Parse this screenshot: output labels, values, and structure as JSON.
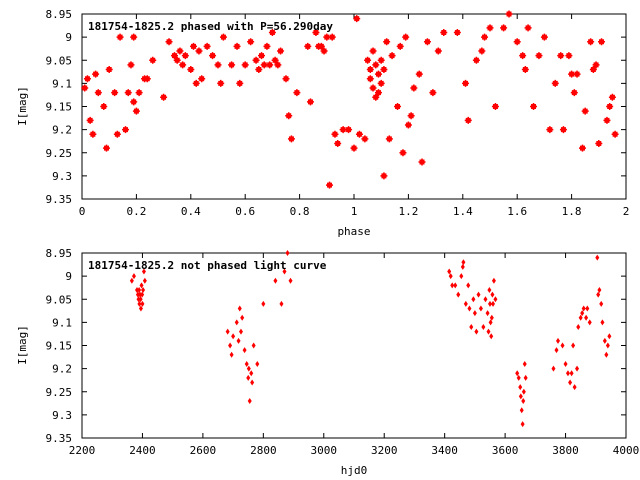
{
  "chart_data": [
    {
      "type": "scatter",
      "title": "181754-1825.2 phased with P=56.290day",
      "xlabel": "phase",
      "ylabel": "I[mag]",
      "xlim": [
        0,
        2
      ],
      "ylim": [
        9.35,
        8.95
      ],
      "y_inverted": true,
      "x_ticks": [
        "0",
        "0.2",
        "0.4",
        "0.6",
        "0.8",
        "1",
        "1.2",
        "1.4",
        "1.6",
        "1.8",
        "2"
      ],
      "y_ticks": [
        "8.95",
        "9",
        "9.05",
        "9.1",
        "9.15",
        "9.2",
        "9.25",
        "9.3",
        "9.35"
      ],
      "marker_color": "#ff0000",
      "grid": false,
      "series": [
        {
          "points": [
            [
              0.01,
              9.11
            ],
            [
              0.02,
              9.09
            ],
            [
              0.03,
              9.18
            ],
            [
              0.04,
              9.21
            ],
            [
              0.05,
              9.08
            ],
            [
              0.06,
              9.12
            ],
            [
              0.08,
              9.15
            ],
            [
              0.09,
              9.24
            ],
            [
              0.1,
              9.07
            ],
            [
              0.12,
              9.12
            ],
            [
              0.13,
              9.21
            ],
            [
              0.14,
              9.0
            ],
            [
              0.16,
              9.2
            ],
            [
              0.17,
              9.12
            ],
            [
              0.18,
              9.06
            ],
            [
              0.19,
              9.14
            ],
            [
              0.19,
              9.0
            ],
            [
              0.2,
              9.16
            ],
            [
              0.21,
              9.12
            ],
            [
              0.23,
              9.09
            ],
            [
              0.24,
              9.09
            ],
            [
              0.26,
              9.05
            ],
            [
              0.3,
              9.13
            ],
            [
              0.32,
              9.01
            ],
            [
              0.34,
              9.04
            ],
            [
              0.35,
              9.05
            ],
            [
              0.36,
              9.03
            ],
            [
              0.37,
              9.06
            ],
            [
              0.38,
              9.04
            ],
            [
              0.4,
              9.07
            ],
            [
              0.41,
              9.02
            ],
            [
              0.42,
              9.1
            ],
            [
              0.43,
              9.03
            ],
            [
              0.44,
              9.09
            ],
            [
              0.46,
              9.02
            ],
            [
              0.48,
              9.04
            ],
            [
              0.5,
              9.06
            ],
            [
              0.51,
              9.1
            ],
            [
              0.52,
              9.0
            ],
            [
              0.55,
              9.06
            ],
            [
              0.57,
              9.02
            ],
            [
              0.58,
              9.1
            ],
            [
              0.6,
              9.06
            ],
            [
              0.62,
              9.01
            ],
            [
              0.64,
              9.05
            ],
            [
              0.65,
              9.07
            ],
            [
              0.66,
              9.04
            ],
            [
              0.67,
              9.06
            ],
            [
              0.68,
              9.02
            ],
            [
              0.69,
              9.06
            ],
            [
              0.7,
              8.99
            ],
            [
              0.71,
              9.05
            ],
            [
              0.72,
              9.06
            ],
            [
              0.73,
              9.03
            ],
            [
              0.75,
              9.09
            ],
            [
              0.76,
              9.17
            ],
            [
              0.77,
              9.22
            ],
            [
              0.79,
              9.12
            ],
            [
              0.83,
              9.02
            ],
            [
              0.84,
              9.14
            ],
            [
              0.86,
              8.99
            ],
            [
              0.87,
              9.02
            ],
            [
              0.88,
              9.02
            ],
            [
              0.89,
              9.03
            ],
            [
              0.9,
              9.0
            ],
            [
              0.91,
              9.32
            ],
            [
              0.92,
              9.0
            ],
            [
              0.93,
              9.21
            ],
            [
              0.94,
              9.23
            ],
            [
              0.96,
              9.2
            ],
            [
              0.98,
              9.2
            ],
            [
              1.0,
              9.24
            ],
            [
              1.01,
              8.96
            ],
            [
              1.02,
              9.21
            ],
            [
              1.04,
              9.22
            ],
            [
              1.05,
              9.05
            ],
            [
              1.06,
              9.07
            ],
            [
              1.06,
              9.09
            ],
            [
              1.07,
              9.11
            ],
            [
              1.07,
              9.03
            ],
            [
              1.08,
              9.06
            ],
            [
              1.08,
              9.13
            ],
            [
              1.09,
              9.08
            ],
            [
              1.09,
              9.12
            ],
            [
              1.1,
              9.05
            ],
            [
              1.1,
              9.1
            ],
            [
              1.11,
              9.07
            ],
            [
              1.11,
              9.3
            ],
            [
              1.12,
              9.01
            ],
            [
              1.13,
              9.22
            ],
            [
              1.14,
              9.04
            ],
            [
              1.16,
              9.15
            ],
            [
              1.17,
              9.02
            ],
            [
              1.18,
              9.25
            ],
            [
              1.19,
              9.0
            ],
            [
              1.2,
              9.19
            ],
            [
              1.21,
              9.17
            ],
            [
              1.22,
              9.11
            ],
            [
              1.24,
              9.08
            ],
            [
              1.25,
              9.27
            ],
            [
              1.27,
              9.01
            ],
            [
              1.29,
              9.12
            ],
            [
              1.31,
              9.03
            ],
            [
              1.33,
              8.99
            ],
            [
              1.38,
              8.99
            ],
            [
              1.41,
              9.1
            ],
            [
              1.42,
              9.18
            ],
            [
              1.45,
              9.05
            ],
            [
              1.47,
              9.03
            ],
            [
              1.48,
              9.0
            ],
            [
              1.5,
              8.98
            ],
            [
              1.52,
              9.15
            ],
            [
              1.55,
              8.98
            ],
            [
              1.57,
              8.95
            ],
            [
              1.6,
              9.01
            ],
            [
              1.62,
              9.04
            ],
            [
              1.63,
              9.07
            ],
            [
              1.64,
              8.98
            ],
            [
              1.66,
              9.15
            ],
            [
              1.68,
              9.04
            ],
            [
              1.7,
              9.0
            ],
            [
              1.72,
              9.2
            ],
            [
              1.74,
              9.1
            ],
            [
              1.76,
              9.04
            ],
            [
              1.77,
              9.2
            ],
            [
              1.79,
              9.04
            ],
            [
              1.8,
              9.08
            ],
            [
              1.81,
              9.12
            ],
            [
              1.82,
              9.08
            ],
            [
              1.84,
              9.24
            ],
            [
              1.85,
              9.16
            ],
            [
              1.87,
              9.01
            ],
            [
              1.88,
              9.07
            ],
            [
              1.89,
              9.06
            ],
            [
              1.9,
              9.23
            ],
            [
              1.91,
              9.01
            ],
            [
              1.93,
              9.18
            ],
            [
              1.94,
              9.15
            ],
            [
              1.95,
              9.13
            ],
            [
              1.96,
              9.21
            ]
          ]
        }
      ]
    },
    {
      "type": "scatter",
      "title": "181754-1825.2 not phased light curve",
      "xlabel": "hjd0",
      "ylabel": "I[mag]",
      "xlim": [
        2200,
        4000
      ],
      "ylim": [
        9.35,
        8.95
      ],
      "y_inverted": true,
      "x_ticks": [
        "2200",
        "2400",
        "2600",
        "2800",
        "3000",
        "3200",
        "3400",
        "3600",
        "3800",
        "4000"
      ],
      "y_ticks": [
        "8.95",
        "9",
        "9.05",
        "9.1",
        "9.15",
        "9.2",
        "9.25",
        "9.3",
        "9.35"
      ],
      "marker_color": "#ff0000",
      "grid": false,
      "series": [
        {
          "points": [
            [
              2365,
              9.01
            ],
            [
              2372,
              9.0
            ],
            [
              2382,
              9.03
            ],
            [
              2385,
              9.04
            ],
            [
              2387,
              9.05
            ],
            [
              2389,
              9.03
            ],
            [
              2390,
              9.06
            ],
            [
              2392,
              9.04
            ],
            [
              2394,
              9.05
            ],
            [
              2395,
              9.07
            ],
            [
              2397,
              9.02
            ],
            [
              2399,
              9.04
            ],
            [
              2400,
              9.06
            ],
            [
              2402,
              9.03
            ],
            [
              2405,
              8.99
            ],
            [
              2408,
              9.01
            ],
            [
              2682,
              9.12
            ],
            [
              2690,
              9.15
            ],
            [
              2695,
              9.17
            ],
            [
              2700,
              9.13
            ],
            [
              2712,
              9.1
            ],
            [
              2718,
              9.14
            ],
            [
              2722,
              9.07
            ],
            [
              2726,
              9.12
            ],
            [
              2730,
              9.09
            ],
            [
              2738,
              9.16
            ],
            [
              2745,
              9.19
            ],
            [
              2750,
              9.22
            ],
            [
              2752,
              9.2
            ],
            [
              2755,
              9.27
            ],
            [
              2760,
              9.21
            ],
            [
              2763,
              9.23
            ],
            [
              2768,
              9.15
            ],
            [
              2780,
              9.19
            ],
            [
              2800,
              9.06
            ],
            [
              2840,
              9.01
            ],
            [
              2860,
              9.06
            ],
            [
              2870,
              8.99
            ],
            [
              2880,
              8.95
            ],
            [
              2890,
              9.01
            ],
            [
              3415,
              8.99
            ],
            [
              3420,
              9.0
            ],
            [
              3425,
              9.02
            ],
            [
              3435,
              9.02
            ],
            [
              3445,
              9.04
            ],
            [
              3455,
              9.0
            ],
            [
              3460,
              8.98
            ],
            [
              3462,
              8.97
            ],
            [
              3470,
              9.06
            ],
            [
              3478,
              9.02
            ],
            [
              3482,
              9.07
            ],
            [
              3488,
              9.11
            ],
            [
              3495,
              9.05
            ],
            [
              3500,
              9.08
            ],
            [
              3505,
              9.12
            ],
            [
              3512,
              9.04
            ],
            [
              3520,
              9.07
            ],
            [
              3528,
              9.11
            ],
            [
              3535,
              9.05
            ],
            [
              3542,
              9.08
            ],
            [
              3545,
              9.12
            ],
            [
              3548,
              9.03
            ],
            [
              3550,
              9.06
            ],
            [
              3552,
              9.1
            ],
            [
              3554,
              9.13
            ],
            [
              3556,
              9.09
            ],
            [
              3558,
              9.04
            ],
            [
              3560,
              9.06
            ],
            [
              3563,
              9.01
            ],
            [
              3568,
              9.05
            ],
            [
              3640,
              9.21
            ],
            [
              3645,
              9.22
            ],
            [
              3650,
              9.24
            ],
            [
              3652,
              9.26
            ],
            [
              3655,
              9.29
            ],
            [
              3658,
              9.32
            ],
            [
              3660,
              9.27
            ],
            [
              3662,
              9.25
            ],
            [
              3665,
              9.19
            ],
            [
              3668,
              9.22
            ],
            [
              3760,
              9.2
            ],
            [
              3770,
              9.16
            ],
            [
              3775,
              9.14
            ],
            [
              3790,
              9.15
            ],
            [
              3800,
              9.19
            ],
            [
              3808,
              9.21
            ],
            [
              3815,
              9.23
            ],
            [
              3820,
              9.21
            ],
            [
              3825,
              9.15
            ],
            [
              3830,
              9.24
            ],
            [
              3838,
              9.2
            ],
            [
              3842,
              9.11
            ],
            [
              3850,
              9.09
            ],
            [
              3855,
              9.08
            ],
            [
              3860,
              9.07
            ],
            [
              3868,
              9.09
            ],
            [
              3872,
              9.07
            ],
            [
              3880,
              9.1
            ],
            [
              3905,
              8.96
            ],
            [
              3908,
              9.04
            ],
            [
              3912,
              9.03
            ],
            [
              3918,
              9.06
            ],
            [
              3922,
              9.1
            ],
            [
              3930,
              9.14
            ],
            [
              3935,
              9.17
            ],
            [
              3940,
              9.15
            ],
            [
              3945,
              9.13
            ]
          ]
        }
      ]
    }
  ]
}
